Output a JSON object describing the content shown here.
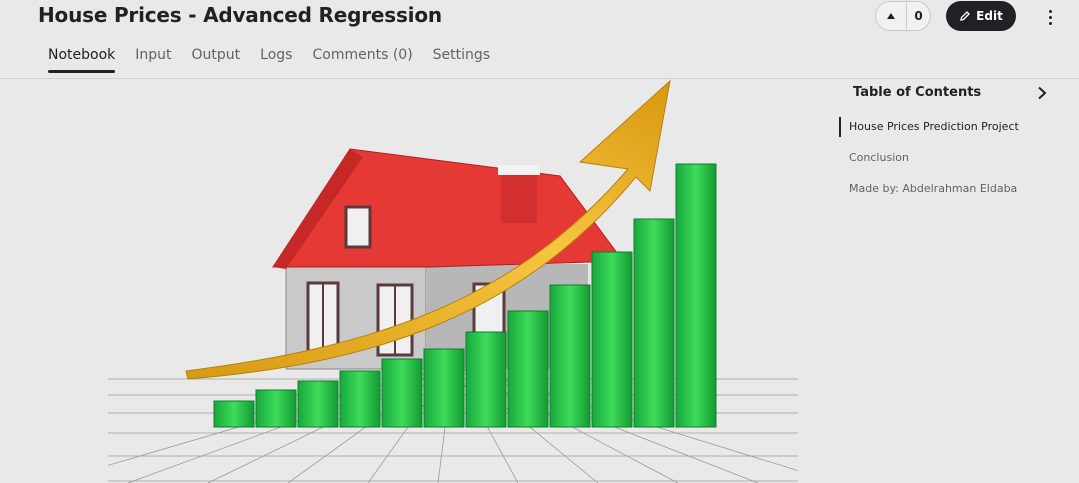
{
  "header": {
    "title": "House Prices - Advanced Regression",
    "vote_count": "0",
    "edit_label": "Edit"
  },
  "tabs": [
    {
      "label": "Notebook"
    },
    {
      "label": "Input"
    },
    {
      "label": "Output"
    },
    {
      "label": "Logs"
    },
    {
      "label": "Comments (0)"
    },
    {
      "label": "Settings"
    }
  ],
  "toc": {
    "title": "Table of Contents",
    "items": [
      {
        "label": "House Prices Prediction Project"
      },
      {
        "label": "Conclusion"
      },
      {
        "label": "Made by: Abdelrahman Eldaba"
      }
    ]
  },
  "icons": {
    "vote": "upvote-triangle-icon",
    "edit": "pencil-icon",
    "menu": "more-vertical-icon",
    "toc": "chevron-right-icon"
  },
  "colors": {
    "primary_button": "#202124",
    "background": "#e9e9e9",
    "roof": "#e53935",
    "bars": "#22b14c",
    "arrow": "#e5a91c"
  }
}
